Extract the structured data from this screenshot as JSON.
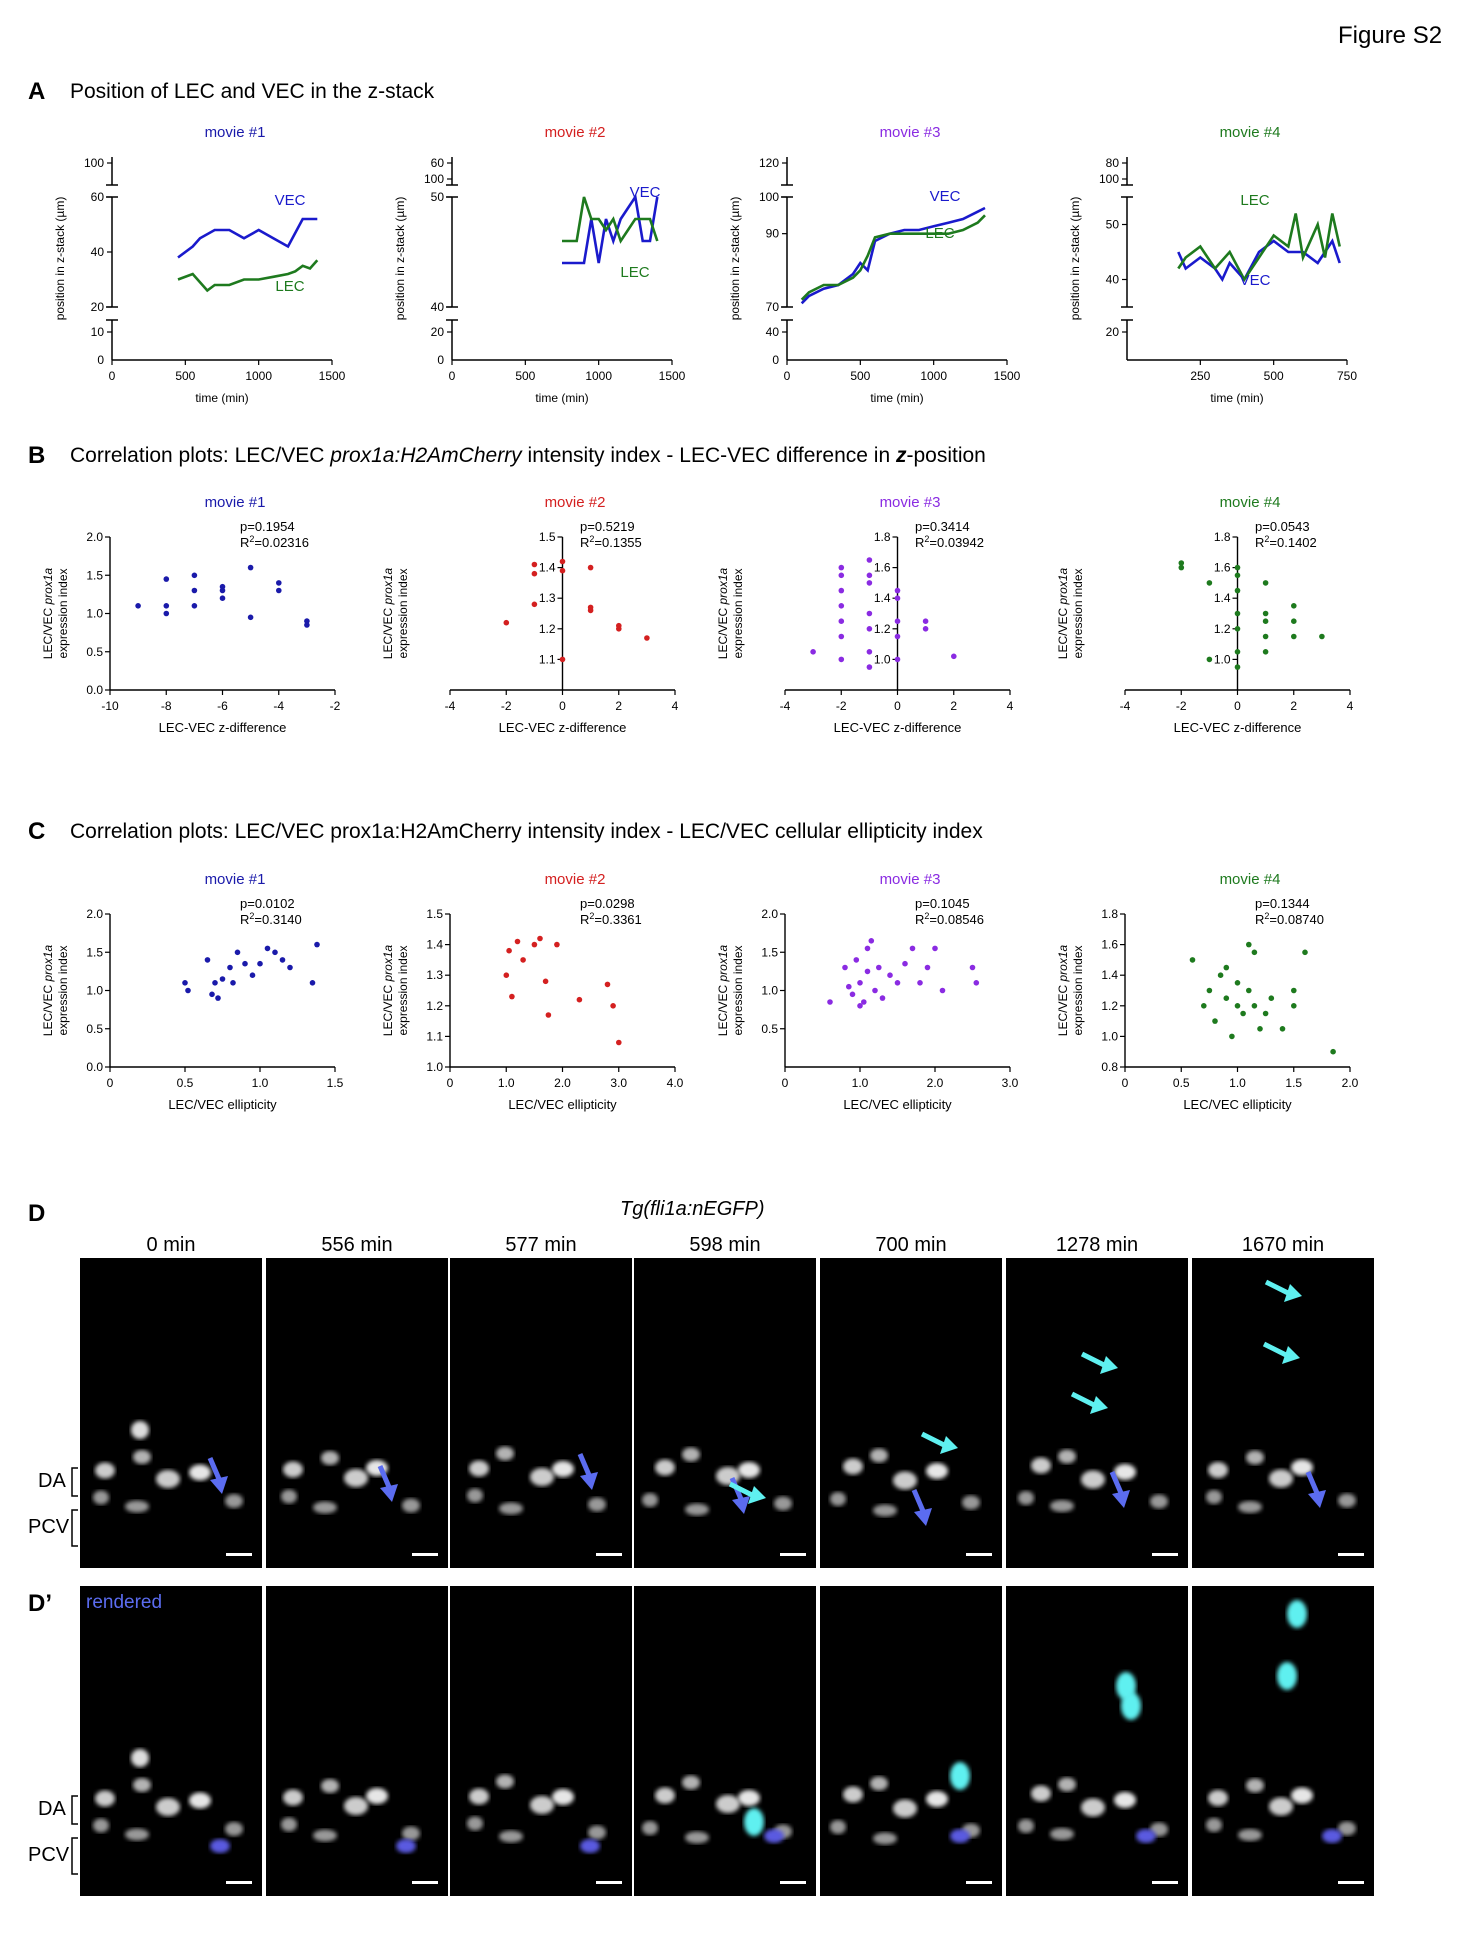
{
  "figure_label": "Figure S2",
  "panel_a": {
    "letter": "A",
    "title": "Position of LEC and VEC in the z-stack"
  },
  "panel_b": {
    "letter": "B",
    "title_parts": [
      "Correlation plots: LEC/VEC ",
      "prox1a:H2AmCherry",
      " intensity index - LEC-VEC difference in ",
      "z",
      "-position"
    ]
  },
  "panel_c": {
    "letter": "C",
    "title": "Correlation plots: LEC/VEC prox1a:H2AmCherry intensity index - LEC/VEC cellular ellipticity index"
  },
  "panel_d": {
    "letter": "D",
    "letter2": "D’",
    "transgene": "Tg(fli1a:nEGFP)",
    "rendered_label": "rendered",
    "vessel_labels": [
      "DA",
      "PCV"
    ],
    "timepoints": [
      "0 min",
      "556 min",
      "577 min",
      "598 min",
      "700 min",
      "1278 min",
      "1670 min"
    ]
  },
  "colors": {
    "movie1": "#1a1aaa",
    "movie2": "#d42020",
    "movie3": "#8a2be2",
    "movie4": "#1e7a1e",
    "vec": "#1a1acc",
    "lec": "#1e7a1e",
    "blue_arrow": "#5b6cf0",
    "cyan_arrow": "#5ff0f0"
  },
  "chart_data": [
    {
      "type": "line",
      "panel": "A",
      "title": "movie #1",
      "xlabel": "time (min)",
      "ylabel": "position in z-stack (µm)",
      "xlim": [
        0,
        1500
      ],
      "xticks": [
        0,
        500,
        1000,
        1500
      ],
      "ybreak_ticks": [
        0,
        10,
        20,
        40,
        60,
        100
      ],
      "series": [
        {
          "name": "VEC",
          "x": [
            450,
            550,
            600,
            700,
            800,
            900,
            1000,
            1100,
            1200,
            1300,
            1400
          ],
          "y": [
            38,
            42,
            45,
            48,
            48,
            45,
            48,
            45,
            42,
            52,
            52
          ]
        },
        {
          "name": "LEC",
          "x": [
            450,
            550,
            650,
            700,
            800,
            900,
            1000,
            1100,
            1200,
            1250,
            1300,
            1350,
            1400
          ],
          "y": [
            30,
            32,
            26,
            28,
            28,
            30,
            30,
            31,
            32,
            33,
            35,
            34,
            37
          ]
        }
      ]
    },
    {
      "type": "line",
      "panel": "A",
      "title": "movie #2",
      "xlabel": "time (min)",
      "ylabel": "position in z-stack (µm)",
      "xlim": [
        0,
        1500
      ],
      "xticks": [
        0,
        500,
        1000,
        1500
      ],
      "ybreak_ticks": [
        0,
        20,
        40,
        50,
        60,
        100
      ],
      "series": [
        {
          "name": "VEC",
          "x": [
            750,
            900,
            950,
            1000,
            1050,
            1100,
            1150,
            1200,
            1250,
            1300,
            1350,
            1400
          ],
          "y": [
            44,
            44,
            48,
            44,
            48,
            46,
            48,
            49,
            50,
            46,
            46,
            50
          ]
        },
        {
          "name": "LEC",
          "x": [
            750,
            850,
            900,
            950,
            1000,
            1050,
            1100,
            1150,
            1200,
            1250,
            1300,
            1350,
            1400
          ],
          "y": [
            46,
            46,
            50,
            48,
            48,
            47,
            48,
            46,
            47,
            48,
            48,
            48,
            46
          ]
        }
      ]
    },
    {
      "type": "line",
      "panel": "A",
      "title": "movie #3",
      "xlabel": "time (min)",
      "ylabel": "position in z-stack (µm)",
      "xlim": [
        0,
        1500
      ],
      "xticks": [
        0,
        500,
        1000,
        1500
      ],
      "ybreak_ticks": [
        40,
        70,
        90,
        100,
        120
      ],
      "series": [
        {
          "name": "VEC",
          "x": [
            100,
            150,
            250,
            350,
            450,
            500,
            550,
            600,
            700,
            800,
            900,
            1000,
            1100,
            1200,
            1300,
            1350
          ],
          "y": [
            71,
            73,
            75,
            76,
            79,
            82,
            80,
            88,
            90,
            91,
            91,
            92,
            93,
            94,
            96,
            97
          ]
        },
        {
          "name": "LEC",
          "x": [
            100,
            150,
            250,
            350,
            450,
            500,
            550,
            600,
            700,
            800,
            900,
            1000,
            1100,
            1200,
            1300,
            1350
          ],
          "y": [
            72,
            74,
            76,
            76,
            78,
            80,
            84,
            89,
            90,
            90,
            90,
            90,
            90,
            91,
            93,
            95
          ]
        }
      ]
    },
    {
      "type": "line",
      "panel": "A",
      "title": "movie #4",
      "xlabel": "time (min)",
      "ylabel": "position in z-stack (µm)",
      "xlim": [
        0,
        750
      ],
      "xticks": [
        250,
        500,
        750
      ],
      "ybreak_ticks": [
        20,
        40,
        50,
        80,
        100
      ],
      "series": [
        {
          "name": "VEC",
          "x": [
            175,
            200,
            250,
            300,
            325,
            350,
            400,
            450,
            500,
            550,
            600,
            650,
            700,
            725
          ],
          "y": [
            45,
            42,
            44,
            42,
            40,
            43,
            40,
            45,
            47,
            45,
            45,
            43,
            47,
            43
          ]
        },
        {
          "name": "LEC",
          "x": [
            175,
            200,
            250,
            300,
            350,
            400,
            450,
            500,
            550,
            575,
            600,
            650,
            675,
            700,
            725
          ],
          "y": [
            42,
            44,
            46,
            42,
            45,
            40,
            44,
            48,
            46,
            52,
            44,
            50,
            44,
            52,
            46
          ]
        }
      ]
    },
    {
      "type": "scatter",
      "panel": "B",
      "title": "movie #1",
      "annotation": [
        "p=0.1954",
        "R2=0.02316"
      ],
      "xlabel": "LEC-VEC z-difference",
      "ylabel_parts": [
        "LEC/VEC ",
        "prox1a",
        "expression index"
      ],
      "xlim": [
        -10,
        -2
      ],
      "ylim": [
        0,
        2.0
      ],
      "xticks": [
        -10,
        -8,
        -6,
        -4,
        -2
      ],
      "yticks": [
        0,
        0.5,
        1.0,
        1.5,
        2.0
      ],
      "x": [
        -9,
        -8,
        -8,
        -8,
        -7,
        -7,
        -7,
        -6,
        -6,
        -6,
        -5,
        -5,
        -4,
        -4,
        -3,
        -3
      ],
      "y": [
        1.1,
        1.0,
        1.1,
        1.45,
        1.1,
        1.3,
        1.5,
        1.2,
        1.3,
        1.35,
        1.6,
        0.95,
        1.4,
        1.3,
        0.9,
        0.85
      ]
    },
    {
      "type": "scatter",
      "panel": "B",
      "title": "movie #2",
      "annotation": [
        "p=0.5219",
        "R2=0.1355"
      ],
      "xlabel": "LEC-VEC z-difference",
      "ylabel_parts": [
        "LEC/VEC ",
        "prox1a",
        "expression index"
      ],
      "xlim": [
        -4,
        4
      ],
      "ylim": [
        1.0,
        1.5
      ],
      "xticks": [
        -4,
        -2,
        0,
        2,
        4
      ],
      "yticks": [
        1.1,
        1.2,
        1.3,
        1.4,
        1.5
      ],
      "x": [
        -2,
        -1,
        -1,
        -1,
        0,
        0,
        0,
        1,
        1,
        1,
        2,
        2,
        3
      ],
      "y": [
        1.22,
        1.28,
        1.38,
        1.41,
        1.42,
        1.39,
        1.1,
        1.4,
        1.27,
        1.26,
        1.21,
        1.2,
        1.17
      ]
    },
    {
      "type": "scatter",
      "panel": "B",
      "title": "movie #3",
      "annotation": [
        "p=0.3414",
        "R2=0.03942"
      ],
      "xlabel": "LEC-VEC z-difference",
      "ylabel_parts": [
        "LEC/VEC ",
        "prox1a",
        "expression index"
      ],
      "xlim": [
        -4,
        4
      ],
      "ylim": [
        0.8,
        1.8
      ],
      "xticks": [
        -4,
        -2,
        0,
        2,
        4
      ],
      "yticks": [
        1.0,
        1.2,
        1.4,
        1.6,
        1.8
      ],
      "x": [
        -3,
        -2,
        -2,
        -2,
        -2,
        -2,
        -2,
        -2,
        -1,
        -1,
        -1,
        -1,
        -1,
        -1,
        -1,
        0,
        0,
        0,
        0,
        0,
        1,
        1,
        2
      ],
      "y": [
        1.05,
        1.0,
        1.15,
        1.25,
        1.35,
        1.45,
        1.55,
        1.6,
        0.95,
        1.05,
        1.2,
        1.3,
        1.5,
        1.55,
        1.65,
        1.0,
        1.15,
        1.25,
        1.4,
        1.45,
        1.2,
        1.25,
        1.02
      ]
    },
    {
      "type": "scatter",
      "panel": "B",
      "title": "movie #4",
      "annotation": [
        "p=0.0543",
        "R2=0.1402"
      ],
      "xlabel": "LEC-VEC z-difference",
      "ylabel_parts": [
        "LEC/VEC ",
        "prox1a",
        "expression index"
      ],
      "xlim": [
        -4,
        4
      ],
      "ylim": [
        0.8,
        1.8
      ],
      "xticks": [
        -4,
        -2,
        0,
        2,
        4
      ],
      "yticks": [
        1.0,
        1.2,
        1.4,
        1.6,
        1.8
      ],
      "x": [
        -2,
        -2,
        -1,
        -1,
        0,
        0,
        0,
        0,
        0,
        0,
        0,
        1,
        1,
        1,
        1,
        1,
        2,
        2,
        2,
        3
      ],
      "y": [
        1.6,
        1.63,
        1.0,
        1.5,
        0.95,
        1.05,
        1.2,
        1.3,
        1.45,
        1.55,
        1.6,
        1.05,
        1.15,
        1.25,
        1.3,
        1.5,
        1.15,
        1.25,
        1.35,
        1.15
      ]
    },
    {
      "type": "scatter",
      "panel": "C",
      "title": "movie #1",
      "annotation": [
        "p=0.0102",
        "R2=0.3140"
      ],
      "xlabel": "LEC/VEC ellipticity",
      "ylabel_parts": [
        "LEC/VEC ",
        "prox1a",
        "expression index"
      ],
      "xlim": [
        0,
        1.5
      ],
      "ylim": [
        0,
        2.0
      ],
      "xticks": [
        0,
        0.5,
        1.0,
        1.5
      ],
      "yticks": [
        0,
        0.5,
        1.0,
        1.5,
        2.0
      ],
      "x": [
        0.5,
        0.52,
        0.65,
        0.68,
        0.7,
        0.72,
        0.75,
        0.8,
        0.82,
        0.85,
        0.9,
        0.95,
        1.0,
        1.05,
        1.1,
        1.15,
        1.2,
        1.35,
        1.38
      ],
      "y": [
        1.1,
        1.0,
        1.4,
        0.95,
        1.1,
        0.9,
        1.15,
        1.3,
        1.1,
        1.5,
        1.35,
        1.2,
        1.35,
        1.55,
        1.5,
        1.4,
        1.3,
        1.1,
        1.6
      ]
    },
    {
      "type": "scatter",
      "panel": "C",
      "title": "movie #2",
      "annotation": [
        "p=0.0298",
        "R2=0.3361"
      ],
      "xlabel": "LEC/VEC ellipticity",
      "ylabel_parts": [
        "LEC/VEC ",
        "prox1a",
        "expression index"
      ],
      "xlim": [
        0,
        4.0
      ],
      "ylim": [
        1.0,
        1.5
      ],
      "xticks": [
        0,
        1.0,
        2.0,
        3.0,
        4.0
      ],
      "yticks": [
        1.0,
        1.1,
        1.2,
        1.3,
        1.4,
        1.5
      ],
      "x": [
        1.0,
        1.05,
        1.1,
        1.2,
        1.3,
        1.5,
        1.6,
        1.7,
        1.75,
        1.9,
        2.3,
        2.8,
        2.9,
        3.0
      ],
      "y": [
        1.3,
        1.38,
        1.23,
        1.41,
        1.35,
        1.4,
        1.42,
        1.28,
        1.17,
        1.4,
        1.22,
        1.27,
        1.2,
        1.08
      ]
    },
    {
      "type": "scatter",
      "panel": "C",
      "title": "movie #3",
      "annotation": [
        "p=0.1045",
        "R2=0.08546"
      ],
      "xlabel": "LEC/VEC ellipticity",
      "ylabel_parts": [
        "LEC/VEC ",
        "prox1a",
        "expression index"
      ],
      "xlim": [
        0,
        3.0
      ],
      "ylim": [
        0,
        2.0
      ],
      "xticks": [
        0,
        1.0,
        2.0,
        3.0
      ],
      "yticks": [
        0.5,
        1.0,
        1.5,
        2.0
      ],
      "x": [
        0.6,
        0.8,
        0.85,
        0.9,
        0.95,
        1.0,
        1.0,
        1.05,
        1.1,
        1.1,
        1.15,
        1.2,
        1.25,
        1.3,
        1.4,
        1.5,
        1.6,
        1.7,
        1.8,
        1.9,
        2.0,
        2.1,
        2.5,
        2.55
      ],
      "y": [
        0.85,
        1.3,
        1.05,
        0.95,
        1.4,
        0.8,
        1.1,
        0.85,
        1.25,
        1.55,
        1.65,
        1.0,
        1.3,
        0.9,
        1.2,
        1.1,
        1.35,
        1.55,
        1.1,
        1.3,
        1.55,
        1.0,
        1.3,
        1.1
      ]
    },
    {
      "type": "scatter",
      "panel": "C",
      "title": "movie #4",
      "annotation": [
        "p=0.1344",
        "R2=0.08740"
      ],
      "xlabel": "LEC/VEC ellipticity",
      "ylabel_parts": [
        "LEC/VEC ",
        "prox1a",
        "expression index"
      ],
      "xlim": [
        0,
        2.0
      ],
      "ylim": [
        0.8,
        1.8
      ],
      "xticks": [
        0,
        0.5,
        1.0,
        1.5,
        2.0
      ],
      "yticks": [
        0.8,
        1.0,
        1.2,
        1.4,
        1.6,
        1.8
      ],
      "x": [
        0.6,
        0.7,
        0.75,
        0.8,
        0.85,
        0.9,
        0.9,
        0.95,
        1.0,
        1.0,
        1.05,
        1.1,
        1.1,
        1.15,
        1.15,
        1.2,
        1.25,
        1.3,
        1.4,
        1.5,
        1.5,
        1.6,
        1.85
      ],
      "y": [
        1.5,
        1.2,
        1.3,
        1.1,
        1.4,
        1.25,
        1.45,
        1.0,
        1.2,
        1.35,
        1.15,
        1.6,
        1.3,
        1.55,
        1.2,
        1.05,
        1.15,
        1.25,
        1.05,
        1.2,
        1.3,
        1.55,
        0.9
      ]
    }
  ]
}
